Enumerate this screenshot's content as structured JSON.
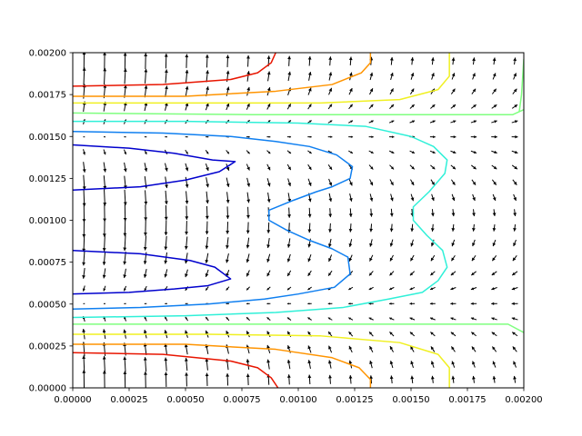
{
  "chart_data": {
    "type": "contour",
    "title": "",
    "xlabel": "",
    "ylabel": "",
    "xlim": [
      0,
      0.002
    ],
    "ylim": [
      0,
      0.002
    ],
    "grid": false,
    "x_ticks": [
      "0.00000",
      "0.00025",
      "0.00050",
      "0.00075",
      "0.00100",
      "0.00125",
      "0.00150",
      "0.00175",
      "0.00200"
    ],
    "y_ticks": [
      "0.00000",
      "0.00025",
      "0.00050",
      "0.00075",
      "0.00100",
      "0.00125",
      "0.00150",
      "0.00175",
      "0.00200"
    ],
    "contours": [
      {
        "level_index": 0,
        "color": "#0000cd",
        "segments": [
          [
            [
              0,
              0.00145
            ],
            [
              0.00025,
              0.00143
            ],
            [
              0.00045,
              0.0014
            ],
            [
              0.00062,
              0.00136
            ],
            [
              0.00072,
              0.00135
            ],
            [
              0.00065,
              0.00129
            ],
            [
              0.0005,
              0.00124
            ],
            [
              0.0003,
              0.0012
            ],
            [
              0,
              0.00118
            ]
          ],
          [
            [
              0,
              0.00082
            ],
            [
              0.0003,
              0.0008
            ],
            [
              0.00052,
              0.00076
            ],
            [
              0.00063,
              0.00072
            ],
            [
              0.0007,
              0.00065
            ],
            [
              0.0006,
              0.00061
            ],
            [
              0.00045,
              0.00059
            ],
            [
              0.00025,
              0.00057
            ],
            [
              0,
              0.00056
            ]
          ]
        ]
      },
      {
        "level_index": 1,
        "color": "#0f7ff0",
        "segments": [
          [
            [
              0,
              0.00153
            ],
            [
              0.0004,
              0.00152
            ],
            [
              0.0007,
              0.0015
            ],
            [
              0.0009,
              0.00147
            ],
            [
              0.00105,
              0.00144
            ],
            [
              0.00117,
              0.00139
            ],
            [
              0.00124,
              0.00132
            ],
            [
              0.00123,
              0.00125
            ],
            [
              0.00115,
              0.0012
            ],
            [
              0.00108,
              0.00117
            ],
            [
              0.00098,
              0.00112
            ],
            [
              0.00087,
              0.00106
            ],
            [
              0.00087,
              0.001
            ],
            [
              0.00095,
              0.00094
            ],
            [
              0.00105,
              0.00088
            ],
            [
              0.00115,
              0.00083
            ],
            [
              0.00122,
              0.00078
            ],
            [
              0.00123,
              0.00068
            ],
            [
              0.00116,
              0.0006
            ],
            [
              0.001,
              0.00056
            ],
            [
              0.00085,
              0.00053
            ],
            [
              0.0006,
              0.0005
            ],
            [
              0.0003,
              0.00048
            ],
            [
              0,
              0.00047
            ]
          ]
        ]
      },
      {
        "level_index": 2,
        "color": "#2ff0d8",
        "segments": [
          [
            [
              0,
              0.00159
            ],
            [
              0.0005,
              0.00159
            ],
            [
              0.001,
              0.00158
            ],
            [
              0.0013,
              0.00156
            ],
            [
              0.0015,
              0.0015
            ],
            [
              0.0016,
              0.00144
            ],
            [
              0.00166,
              0.00136
            ],
            [
              0.00165,
              0.00128
            ],
            [
              0.00158,
              0.00117
            ],
            [
              0.00151,
              0.00108
            ],
            [
              0.00151,
              0.001
            ],
            [
              0.00157,
              0.00091
            ],
            [
              0.00164,
              0.00082
            ],
            [
              0.00166,
              0.00072
            ],
            [
              0.00162,
              0.00064
            ],
            [
              0.00155,
              0.00057
            ],
            [
              0.0014,
              0.00053
            ],
            [
              0.0012,
              0.00048
            ],
            [
              0.0009,
              0.00045
            ],
            [
              0.0005,
              0.00043
            ],
            [
              0,
              0.00042
            ]
          ]
        ]
      },
      {
        "level_index": 3,
        "color": "#7fff7f",
        "segments": [
          [
            [
              0,
              0.00164
            ],
            [
              0.0008,
              0.00163
            ],
            [
              0.0015,
              0.00163
            ],
            [
              0.00195,
              0.00163
            ],
            [
              0.002,
              0.00166
            ]
          ],
          [
            [
              0.002,
              0.00196
            ],
            [
              0.00199,
              0.00175
            ],
            [
              0.00198,
              0.00165
            ]
          ],
          [
            [
              0,
              0.00038
            ],
            [
              0.0008,
              0.00038
            ],
            [
              0.0015,
              0.00038
            ],
            [
              0.00193,
              0.00038
            ],
            [
              0.002,
              0.00033
            ]
          ]
        ]
      },
      {
        "level_index": 4,
        "color": "#f0f021",
        "segments": [
          [
            [
              0,
              0.0017
            ],
            [
              0.0006,
              0.0017
            ],
            [
              0.0011,
              0.0017
            ],
            [
              0.00145,
              0.00172
            ],
            [
              0.00162,
              0.00178
            ],
            [
              0.00167,
              0.00186
            ],
            [
              0.00167,
              0.002
            ]
          ],
          [
            [
              0,
              0.00032
            ],
            [
              0.0006,
              0.00032
            ],
            [
              0.0011,
              0.00031
            ],
            [
              0.00145,
              0.00027
            ],
            [
              0.00162,
              0.0002
            ],
            [
              0.00167,
              0.00012
            ],
            [
              0.00167,
              0
            ]
          ]
        ]
      },
      {
        "level_index": 5,
        "color": "#ff9400",
        "segments": [
          [
            [
              0,
              0.00174
            ],
            [
              0.0005,
              0.00174
            ],
            [
              0.0009,
              0.00177
            ],
            [
              0.00115,
              0.00181
            ],
            [
              0.00128,
              0.00188
            ],
            [
              0.00132,
              0.00194
            ],
            [
              0.00132,
              0.002
            ]
          ],
          [
            [
              0,
              0.00026
            ],
            [
              0.0005,
              0.00026
            ],
            [
              0.0009,
              0.00023
            ],
            [
              0.00115,
              0.00018
            ],
            [
              0.00127,
              0.00012
            ],
            [
              0.00132,
              5e-05
            ],
            [
              0.00132,
              0
            ]
          ]
        ]
      },
      {
        "level_index": 6,
        "color": "#e81500",
        "segments": [
          [
            [
              0,
              0.0018
            ],
            [
              0.0004,
              0.00181
            ],
            [
              0.0007,
              0.00184
            ],
            [
              0.00082,
              0.00188
            ],
            [
              0.00088,
              0.00194
            ],
            [
              0.0009,
              0.002
            ]
          ],
          [
            [
              0,
              0.00021
            ],
            [
              0.0004,
              0.0002
            ],
            [
              0.0007,
              0.00016
            ],
            [
              0.00082,
              0.00012
            ],
            [
              0.00088,
              6e-05
            ],
            [
              0.00091,
              0
            ]
          ]
        ]
      }
    ],
    "quiver": {
      "nx": 22,
      "ny": 22,
      "xlim": [
        5e-05,
        0.00196
      ],
      "ylim": [
        5e-05,
        0.00195
      ],
      "color": "#000000",
      "max_length_y_units": 0.00012
    }
  }
}
